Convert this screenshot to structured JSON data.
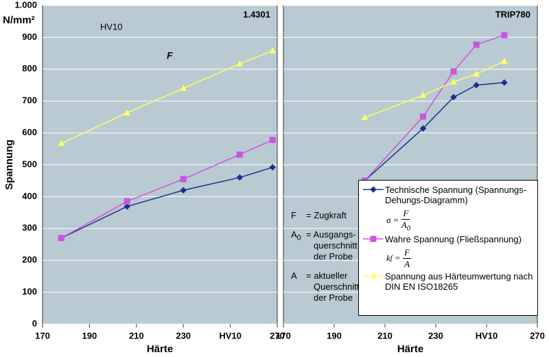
{
  "chart_data": [
    {
      "type": "line",
      "title": "1.4301",
      "y_label": "Spannung",
      "y_unit": "N/mm²",
      "x_label": "Härte",
      "annotations": [
        "HV10",
        "F"
      ],
      "xlim": [
        170,
        270
      ],
      "xticks": [
        170,
        190,
        210,
        230,
        {
          "value": 250,
          "label": "HV10"
        },
        270
      ],
      "ylim": [
        0,
        1000
      ],
      "yticks": [
        0,
        100,
        200,
        300,
        400,
        500,
        600,
        700,
        800,
        900,
        {
          "value": 1000,
          "label": "1.000"
        }
      ],
      "grid": true,
      "show_ytick_labels": true,
      "x": [
        178,
        206,
        230,
        254,
        268
      ],
      "series": [
        {
          "color": "#1c2f8f",
          "marker": "diamond",
          "values": [
            270,
            369,
            420,
            460,
            492
          ]
        },
        {
          "color": "#cc55dd",
          "marker": "square",
          "values": [
            270,
            385,
            455,
            532,
            578
          ]
        },
        {
          "color": "#ffff66",
          "marker": "triangle",
          "values": [
            567,
            663,
            740,
            817,
            858
          ]
        }
      ]
    },
    {
      "type": "line",
      "title": "TRIP780",
      "x_label": "Härte",
      "xlim": [
        170,
        270
      ],
      "xticks": [
        170,
        190,
        210,
        230,
        {
          "value": 250,
          "label": "HV10"
        },
        270
      ],
      "ylim": [
        0,
        1000
      ],
      "yticks": [
        0,
        100,
        200,
        300,
        400,
        500,
        600,
        700,
        800,
        900,
        1000
      ],
      "grid": true,
      "show_ytick_labels": false,
      "legend": "bottom-right",
      "x": [
        202,
        225,
        237,
        246,
        257
      ],
      "series": [
        {
          "name": "Technische Spannung (Spannungs-Dehungs-Diagramm)",
          "color": "#1c2f8f",
          "marker": "diamond",
          "formula": {
            "lhs": "σ",
            "eq": "=",
            "num": "F",
            "den": "A",
            "den_sub": "0"
          },
          "values": [
            450,
            614,
            712,
            750,
            758
          ]
        },
        {
          "name": "Wahre Spannung (Fließspannung)",
          "color": "#cc55dd",
          "marker": "square",
          "formula": {
            "lhs": "k",
            "lhs_sub": "f",
            "eq": "=",
            "num": "F",
            "den": "A"
          },
          "values": [
            450,
            651,
            793,
            877,
            907
          ]
        },
        {
          "name": "Spannung aus Härteumwertung nach DIN EN ISO18265",
          "color": "#ffff66",
          "marker": "triangle",
          "values": [
            648,
            718,
            760,
            785,
            825
          ]
        }
      ],
      "definitions": [
        {
          "symbol": "F",
          "lines": [
            "= Zugkraft"
          ]
        },
        {
          "symbol": "A",
          "sub": "0",
          "lines": [
            "= Ausgangs-",
            "querschnitt",
            "der Probe"
          ]
        },
        {
          "symbol": "A",
          "lines": [
            "= aktueller",
            "Querschnitt",
            "der Probe"
          ]
        }
      ]
    }
  ]
}
